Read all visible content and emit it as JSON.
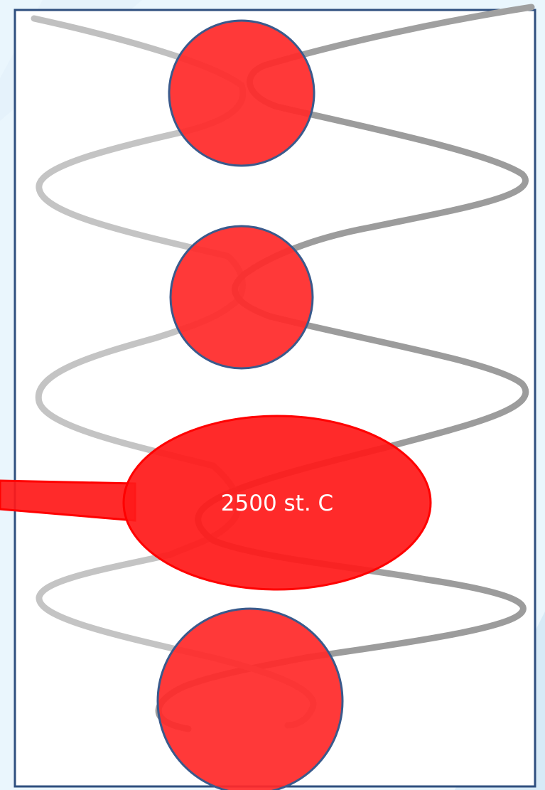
{
  "diagram": {
    "callout": {
      "label": "2500 st. C"
    },
    "colors": {
      "background": "#eaf6fd",
      "frame_border": "#2f4f7f",
      "filament_light": "#c0c0c0",
      "filament_dark": "#9a9a9a",
      "bulb_fill": "#ff2a2a",
      "bulb_border": "#3a5a8c",
      "callout_fill": "#ff1a1a",
      "callout_text": "#ffffff"
    },
    "icons": [
      "coil-filament",
      "heated-spot",
      "temperature-callout"
    ]
  }
}
